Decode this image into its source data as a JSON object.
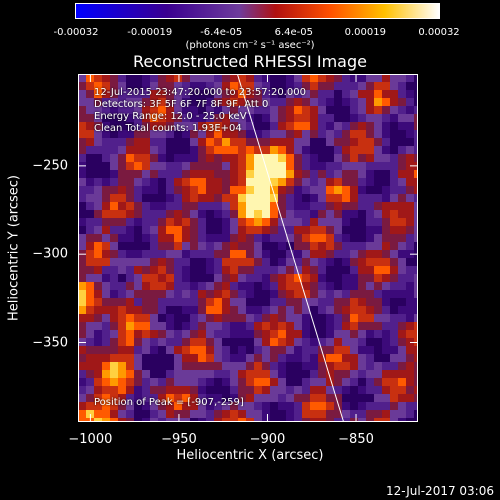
{
  "colorbar": {
    "ticks": [
      "-0.00032",
      "-0.00019",
      "-6.4e-05",
      "6.4e-05",
      "0.00019",
      "0.00032"
    ],
    "tick_values": [
      -0.00032,
      -0.00019,
      -6.4e-05,
      6.4e-05,
      0.00019,
      0.00032
    ],
    "unit_label": "(photons cm⁻² s⁻¹ asec⁻²)",
    "colors": [
      "#0000ff",
      "#3a0090",
      "#6e3c9c",
      "#b01010",
      "#ff5000",
      "#ffc000",
      "#ffffff"
    ]
  },
  "info_lines": [
    "12-Jul-2015 23:47:20.000 to 23:57:20.000",
    "Detectors: 3F 5F 6F 7F 8F 9F, Att 0",
    "Energy Range: 12.0 - 25.0 keV",
    "Clean     Total counts: 1.93E+04"
  ],
  "peak_label": "Position of Peak = [-907,-259]",
  "footer_date": "12-Jul-2017 03:06",
  "chart_data": {
    "type": "heatmap",
    "title": "Reconstructed RHESSI Image",
    "xlabel": "Heliocentric X (arcsec)",
    "ylabel": "Heliocentric Y (arcsec)",
    "xlim": [
      -1007,
      -815
    ],
    "ylim": [
      -395,
      -198
    ],
    "xticks": [
      -1000,
      -950,
      -900,
      -850
    ],
    "yticks": [
      -250,
      -300,
      -350
    ],
    "xtick_labels": [
      "−1000",
      "−950",
      "−900",
      "−850"
    ],
    "ytick_labels": [
      "−250",
      "−300",
      "−350"
    ],
    "peak": {
      "x": -907,
      "y": -259
    },
    "limb_line": [
      {
        "x": -917,
        "y": -198
      },
      {
        "x": -857,
        "y": -395
      }
    ],
    "value_range": [
      -0.00032,
      0.00032
    ]
  }
}
